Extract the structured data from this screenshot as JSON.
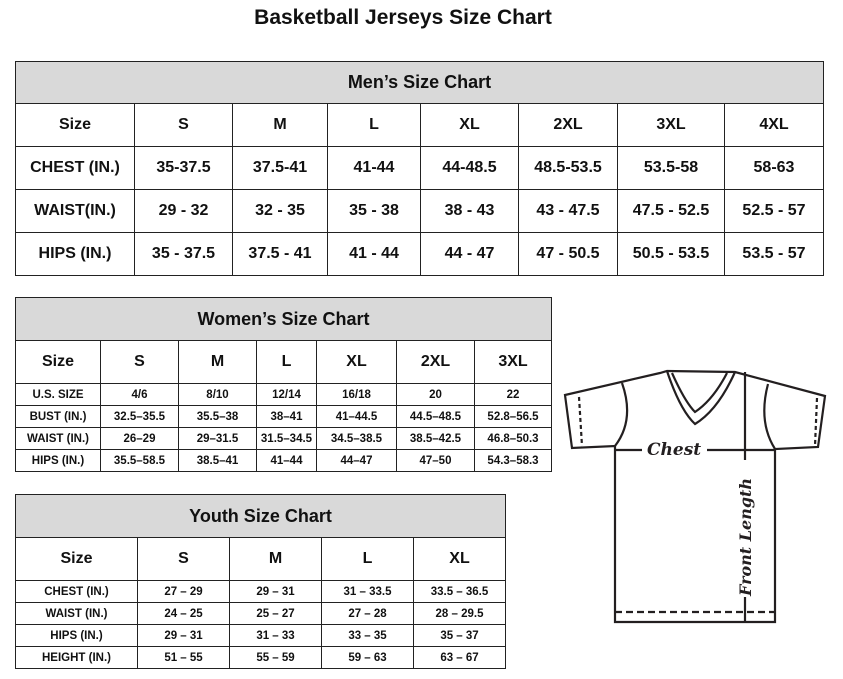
{
  "title": "Basketball Jerseys Size Chart",
  "men": {
    "title": "Men’s Size Chart",
    "columns": [
      "Size",
      "S",
      "M",
      "L",
      "XL",
      "2XL",
      "3XL",
      "4XL"
    ],
    "rows": [
      [
        "CHEST (IN.)",
        "35-37.5",
        "37.5-41",
        "41-44",
        "44-48.5",
        "48.5-53.5",
        "53.5-58",
        "58-63"
      ],
      [
        "WAIST(IN.)",
        "29 - 32",
        "32 - 35",
        "35 - 38",
        "38 - 43",
        "43 - 47.5",
        "47.5 - 52.5",
        "52.5 - 57"
      ],
      [
        "HIPS (IN.)",
        "35 - 37.5",
        "37.5 - 41",
        "41 - 44",
        "44 - 47",
        "47 - 50.5",
        "50.5 - 53.5",
        "53.5 - 57"
      ]
    ]
  },
  "women": {
    "title": "Women’s Size Chart",
    "columns": [
      "Size",
      "S",
      "M",
      "L",
      "XL",
      "2XL",
      "3XL"
    ],
    "rows": [
      [
        "U.S.  SIZE",
        "4/6",
        "8/10",
        "12/14",
        "16/18",
        "20",
        "22"
      ],
      [
        "BUST  (IN.)",
        "32.5–35.5",
        "35.5–38",
        "38–41",
        "41–44.5",
        "44.5–48.5",
        "52.8–56.5"
      ],
      [
        "WAIST  (IN.)",
        "26–29",
        "29–31.5",
        "31.5–34.5",
        "34.5–38.5",
        "38.5–42.5",
        "46.8–50.3"
      ],
      [
        "HIPS  (IN.)",
        "35.5–58.5",
        "38.5–41",
        "41–44",
        "44–47",
        "47–50",
        "54.3–58.3"
      ]
    ]
  },
  "youth": {
    "title": "Youth Size Chart",
    "columns": [
      "Size",
      "S",
      "M",
      "L",
      "XL"
    ],
    "rows": [
      [
        "CHEST  (IN.)",
        "27  –  29",
        "29  –  31",
        "31  –  33.5",
        "33.5  –  36.5"
      ],
      [
        "WAIST  (IN.)",
        "24  –  25",
        "25  –  27",
        "27  –  28",
        "28  –  29.5"
      ],
      [
        "HIPS  (IN.)",
        "29  –  31",
        "31  –  33",
        "33  –  35",
        "35  –  37"
      ],
      [
        "HEIGHT  (IN.)",
        "51  –  55",
        "55  –  59",
        "59  –  63",
        "63  –  67"
      ]
    ]
  },
  "diagram": {
    "chest_label": "Chest",
    "length_label": "Front Length"
  }
}
